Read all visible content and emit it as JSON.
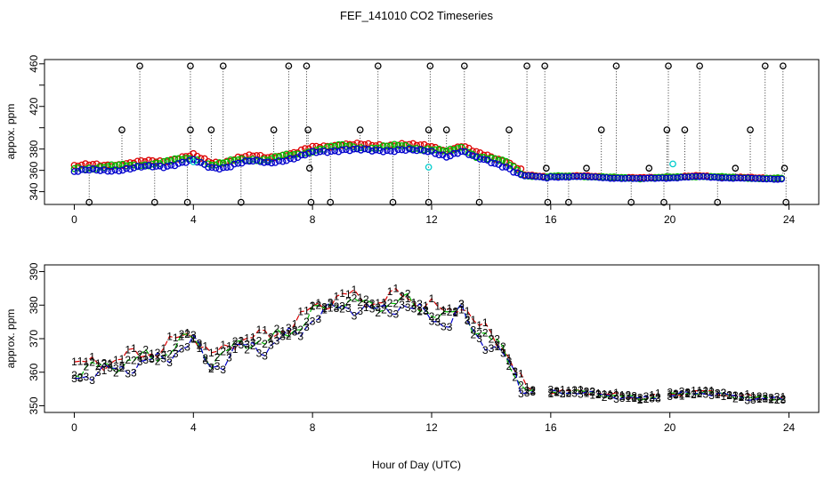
{
  "title": "FEF_141010  CO2 Timeseries",
  "xlabel": "Hour of Day (UTC)",
  "colors": {
    "black": "#000000",
    "red": "#dd0000",
    "green": "#00bb00",
    "blue": "#0000cc",
    "cyan": "#00cccc"
  },
  "chart_data": [
    {
      "type": "scatter",
      "name": "top-panel",
      "ylabel": "appox. ppm",
      "xlim": [
        -1,
        25
      ],
      "ylim": [
        328,
        464
      ],
      "xticks": [
        0,
        4,
        8,
        12,
        16,
        20,
        24
      ],
      "yticks": [
        340,
        360,
        380,
        400,
        420,
        440,
        460
      ],
      "ytick_labels": [
        "340",
        "360",
        "380",
        "420",
        "460"
      ],
      "flagged_points": [
        {
          "x": 0.5,
          "y": 330
        },
        {
          "x": 1.6,
          "y": 398
        },
        {
          "x": 2.2,
          "y": 458
        },
        {
          "x": 2.7,
          "y": 330
        },
        {
          "x": 3.8,
          "y": 330
        },
        {
          "x": 3.9,
          "y": 398
        },
        {
          "x": 3.9,
          "y": 458
        },
        {
          "x": 4.6,
          "y": 398
        },
        {
          "x": 5.0,
          "y": 458
        },
        {
          "x": 5.6,
          "y": 330
        },
        {
          "x": 6.7,
          "y": 398
        },
        {
          "x": 7.2,
          "y": 458
        },
        {
          "x": 7.8,
          "y": 458
        },
        {
          "x": 7.85,
          "y": 398
        },
        {
          "x": 7.9,
          "y": 362
        },
        {
          "x": 7.95,
          "y": 330
        },
        {
          "x": 8.6,
          "y": 330
        },
        {
          "x": 9.6,
          "y": 398
        },
        {
          "x": 10.2,
          "y": 458
        },
        {
          "x": 10.7,
          "y": 330
        },
        {
          "x": 11.9,
          "y": 330
        },
        {
          "x": 11.9,
          "y": 398
        },
        {
          "x": 11.95,
          "y": 458
        },
        {
          "x": 12.5,
          "y": 398
        },
        {
          "x": 13.1,
          "y": 458
        },
        {
          "x": 13.6,
          "y": 330
        },
        {
          "x": 14.6,
          "y": 398
        },
        {
          "x": 15.2,
          "y": 458
        },
        {
          "x": 15.8,
          "y": 458
        },
        {
          "x": 15.85,
          "y": 362
        },
        {
          "x": 15.9,
          "y": 330
        },
        {
          "x": 16.6,
          "y": 330
        },
        {
          "x": 17.2,
          "y": 362
        },
        {
          "x": 17.7,
          "y": 398
        },
        {
          "x": 18.2,
          "y": 458
        },
        {
          "x": 18.7,
          "y": 330
        },
        {
          "x": 19.3,
          "y": 362
        },
        {
          "x": 19.8,
          "y": 330
        },
        {
          "x": 19.9,
          "y": 398
        },
        {
          "x": 19.95,
          "y": 458
        },
        {
          "x": 20.5,
          "y": 398
        },
        {
          "x": 21.0,
          "y": 458
        },
        {
          "x": 21.6,
          "y": 330
        },
        {
          "x": 22.2,
          "y": 362
        },
        {
          "x": 22.7,
          "y": 398
        },
        {
          "x": 23.2,
          "y": 458
        },
        {
          "x": 23.8,
          "y": 458
        },
        {
          "x": 23.85,
          "y": 362
        },
        {
          "x": 23.9,
          "y": 330
        }
      ],
      "cyan_points": [
        {
          "x": 4.0,
          "y": 368
        },
        {
          "x": 11.9,
          "y": 363
        },
        {
          "x": 20.1,
          "y": 366
        }
      ]
    },
    {
      "type": "line",
      "name": "bottom-panel",
      "ylabel": "approx. ppm",
      "xlim": [
        -1,
        25
      ],
      "ylim": [
        348,
        392
      ],
      "xticks": [
        0,
        4,
        8,
        12,
        16,
        20,
        24
      ],
      "yticks": [
        350,
        360,
        370,
        380,
        390
      ],
      "series": [
        {
          "name": "1",
          "color": "red",
          "offset": 3.0
        },
        {
          "name": "2",
          "color": "green",
          "offset": 1.5
        },
        {
          "name": "3",
          "color": "blue",
          "offset": 0.0
        }
      ],
      "baseline": [
        [
          0,
          359
        ],
        [
          1,
          360
        ],
        [
          1.5,
          361
        ],
        [
          2,
          362
        ],
        [
          2.5,
          363
        ],
        [
          3,
          364
        ],
        [
          3.5,
          367
        ],
        [
          4,
          369
        ],
        [
          4.3,
          365
        ],
        [
          4.6,
          362
        ],
        [
          5,
          363
        ],
        [
          5.5,
          367
        ],
        [
          6,
          368
        ],
        [
          6.5,
          367
        ],
        [
          7,
          370
        ],
        [
          7.5,
          372
        ],
        [
          8,
          376
        ],
        [
          8.5,
          378
        ],
        [
          9,
          380
        ],
        [
          9.5,
          379
        ],
        [
          10,
          378
        ],
        [
          10.5,
          379
        ],
        [
          11,
          380
        ],
        [
          11.5,
          378
        ],
        [
          12,
          377
        ],
        [
          12.5,
          374
        ],
        [
          13,
          378
        ],
        [
          13.5,
          371
        ],
        [
          14,
          368
        ],
        [
          14.5,
          364
        ],
        [
          15,
          355
        ],
        [
          15.5,
          354
        ],
        [
          15.9,
          353
        ],
        [
          16,
          354
        ],
        [
          17,
          354
        ],
        [
          18,
          353
        ],
        [
          19,
          352
        ],
        [
          19.8,
          353
        ],
        [
          20,
          353
        ],
        [
          21,
          354
        ],
        [
          22,
          353
        ],
        [
          23,
          352
        ],
        [
          23.8,
          352
        ]
      ]
    }
  ],
  "x_ticks_labels": [
    "0",
    "4",
    "8",
    "12",
    "16",
    "20",
    "24"
  ]
}
